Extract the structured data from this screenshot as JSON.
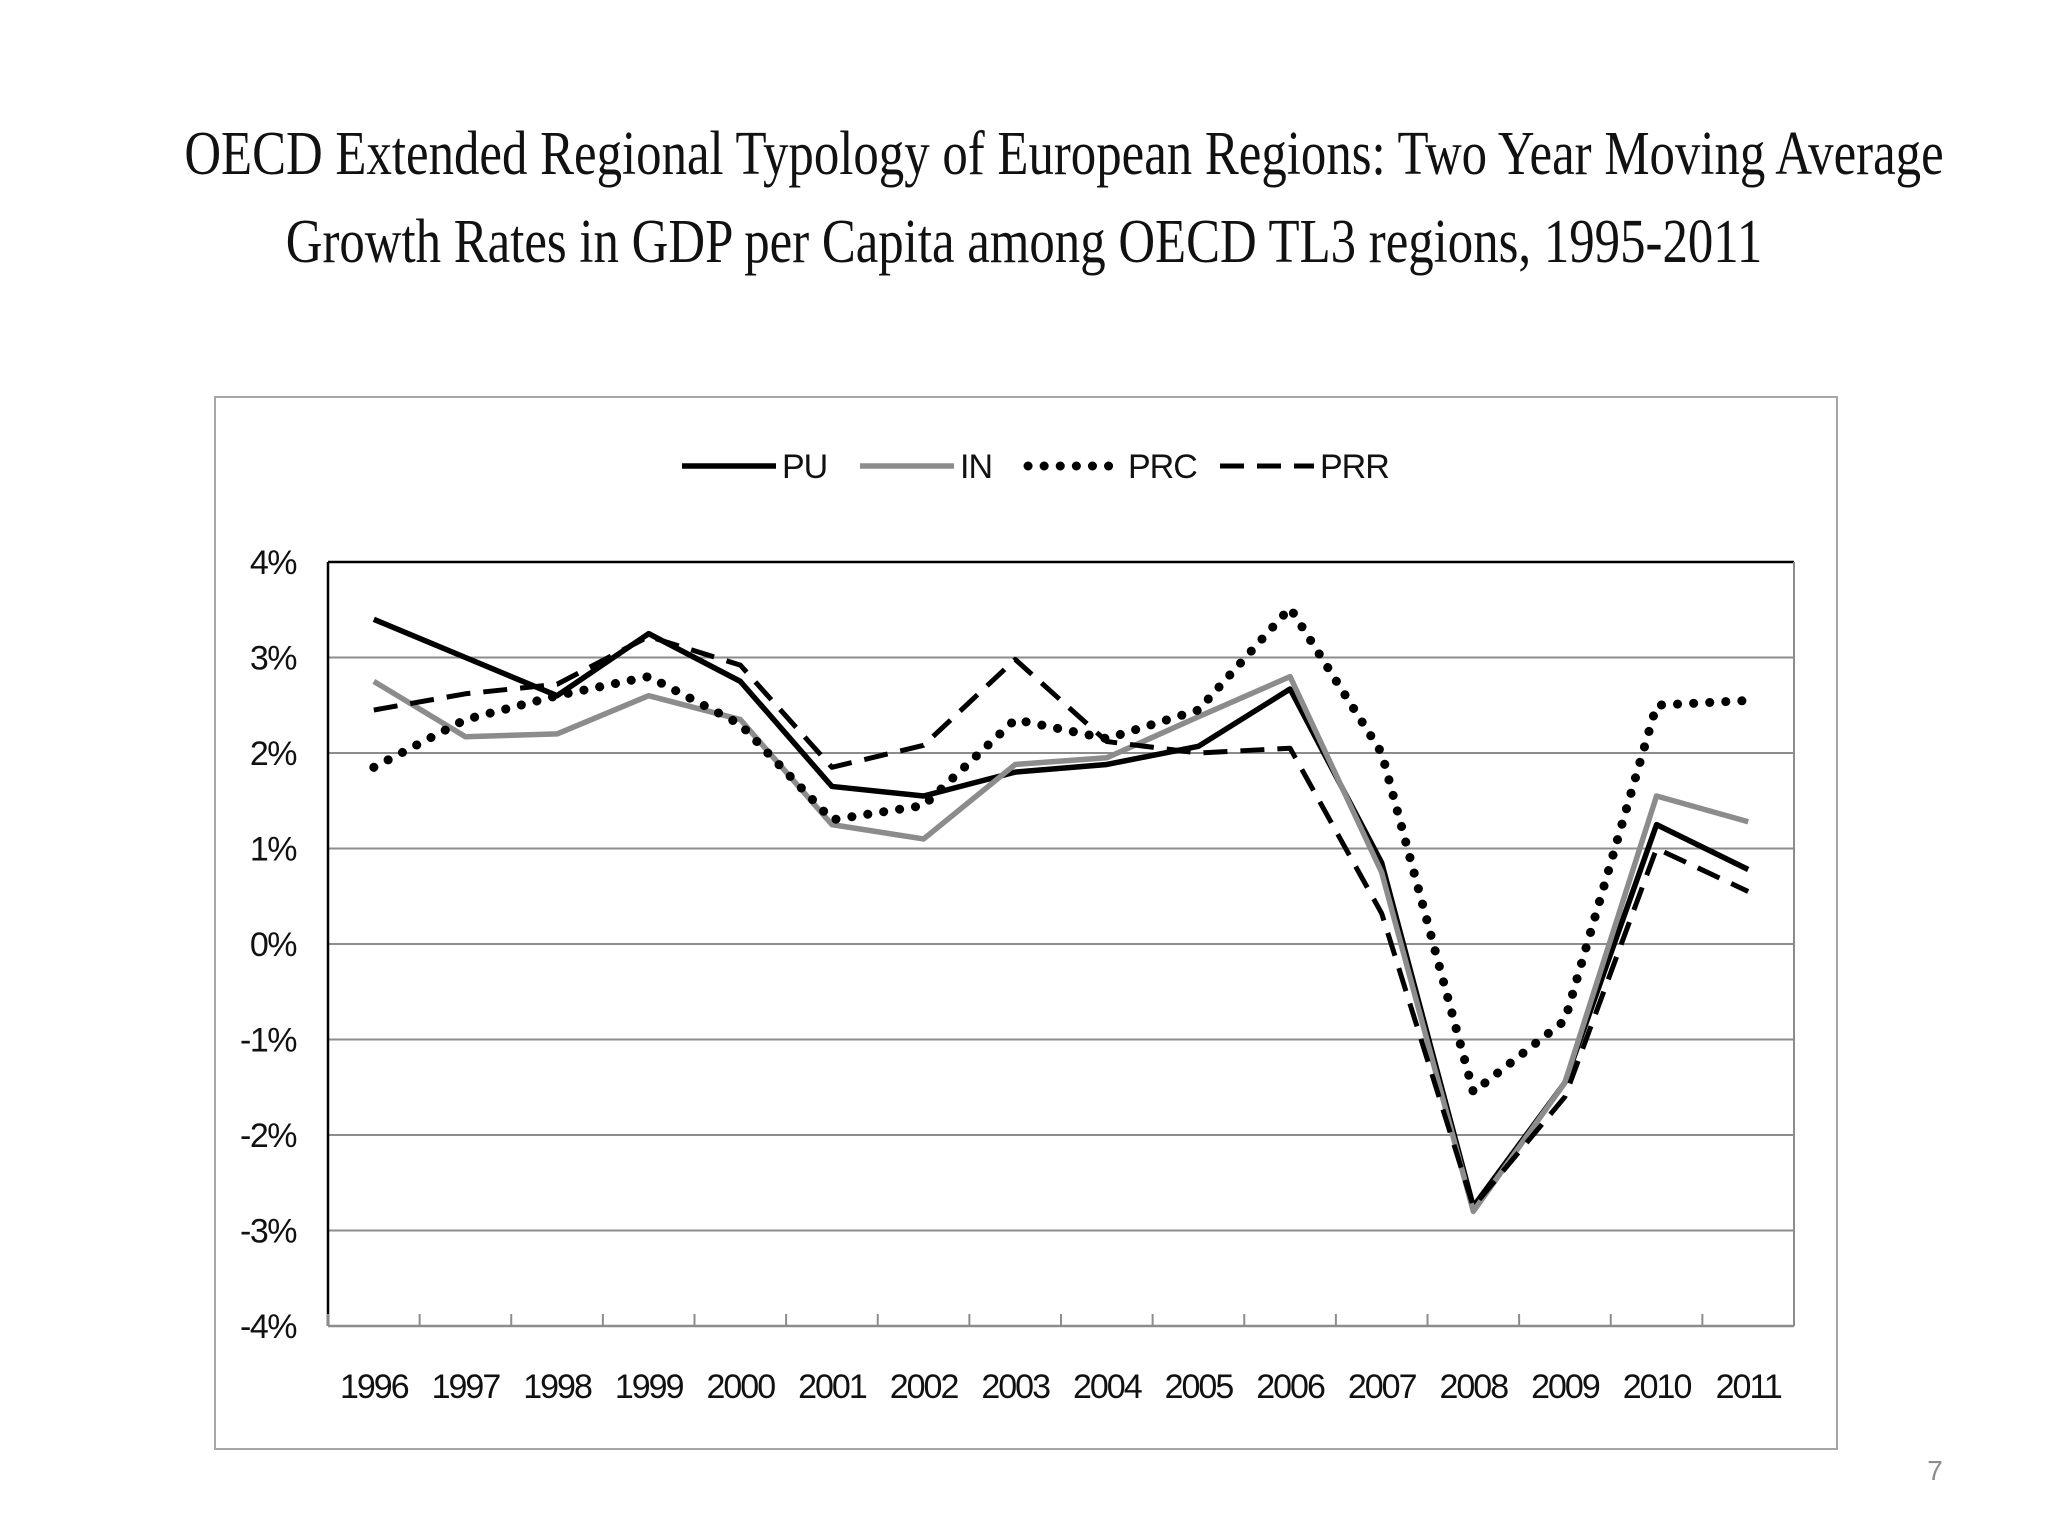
{
  "slide": {
    "title_line_1": "OECD Extended Regional Typology of European Regions: Two Year Moving Average",
    "title_line_2": "Growth Rates in GDP per Capita among OECD TL3 regions, 1995-2011",
    "page_number": "7"
  },
  "chart_data": {
    "type": "line",
    "title": "",
    "xlabel": "",
    "ylabel": "",
    "x": [
      "1996",
      "1997",
      "1998",
      "1999",
      "2000",
      "2001",
      "2002",
      "2003",
      "2004",
      "2005",
      "2006",
      "2007",
      "2008",
      "2009",
      "2010",
      "2011"
    ],
    "ylim": [
      -4,
      4
    ],
    "yticks": [
      4,
      3,
      2,
      1,
      0,
      -1,
      -2,
      -3,
      -4
    ],
    "ytick_labels": [
      "4%",
      "3%",
      "2%",
      "1%",
      "0%",
      "-1%",
      "-2%",
      "-3%",
      "-4%"
    ],
    "grid": "horizontal",
    "legend_position": "top-center",
    "series": [
      {
        "name": "PU",
        "style": "solid",
        "color": "#000000",
        "values": [
          3.4,
          3.0,
          2.6,
          3.25,
          2.75,
          1.65,
          1.55,
          1.8,
          1.88,
          2.07,
          2.67,
          0.85,
          -2.75,
          -1.45,
          1.25,
          0.78
        ]
      },
      {
        "name": "IN",
        "style": "solid",
        "color": "#8c8c8c",
        "values": [
          2.75,
          2.17,
          2.2,
          2.6,
          2.35,
          1.25,
          1.1,
          1.88,
          1.95,
          2.38,
          2.8,
          0.75,
          -2.8,
          -1.45,
          1.55,
          1.28
        ]
      },
      {
        "name": "PRC",
        "style": "dotted",
        "color": "#000000",
        "values": [
          1.85,
          2.35,
          2.6,
          2.8,
          2.3,
          1.3,
          1.45,
          2.35,
          2.15,
          2.45,
          3.52,
          2.0,
          -1.55,
          -0.8,
          2.5,
          2.55
        ]
      },
      {
        "name": "PRR",
        "style": "dashed",
        "color": "#000000",
        "values": [
          2.45,
          2.62,
          2.72,
          3.22,
          2.92,
          1.85,
          2.08,
          2.98,
          2.12,
          2.0,
          2.05,
          0.32,
          -2.75,
          -1.6,
          1.0,
          0.55
        ]
      }
    ]
  }
}
